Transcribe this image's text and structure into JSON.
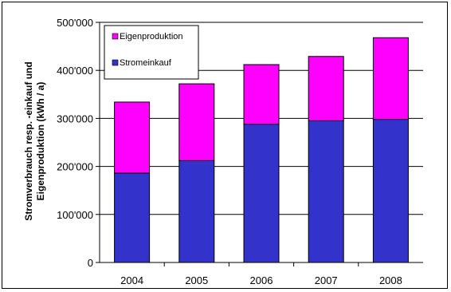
{
  "chart_data": {
    "type": "bar",
    "stacked": true,
    "categories": [
      "2004",
      "2005",
      "2006",
      "2007",
      "2008"
    ],
    "series": [
      {
        "name": "Stromeinkauf",
        "values": [
          186000,
          212000,
          288000,
          295000,
          298000
        ],
        "color": "#3333cc"
      },
      {
        "name": "Eigenproduktion",
        "values": [
          148000,
          160000,
          124000,
          134000,
          170000
        ],
        "color": "#ff00ff"
      }
    ],
    "y_ticks": [
      "0",
      "100'000",
      "200'000",
      "300'000",
      "400'000",
      "500'000"
    ],
    "ylim": [
      0,
      500000
    ],
    "ylabel_line1": "Stromverbrauch resp. -einkauf und",
    "ylabel_line2": "Eigenproduktion (kWh / a)",
    "grid": true,
    "legend_position": "top-left",
    "legend": [
      {
        "label": "Eigenproduktion",
        "color": "#ff00ff"
      },
      {
        "label": "Stromeinkauf",
        "color": "#3333cc"
      }
    ]
  }
}
